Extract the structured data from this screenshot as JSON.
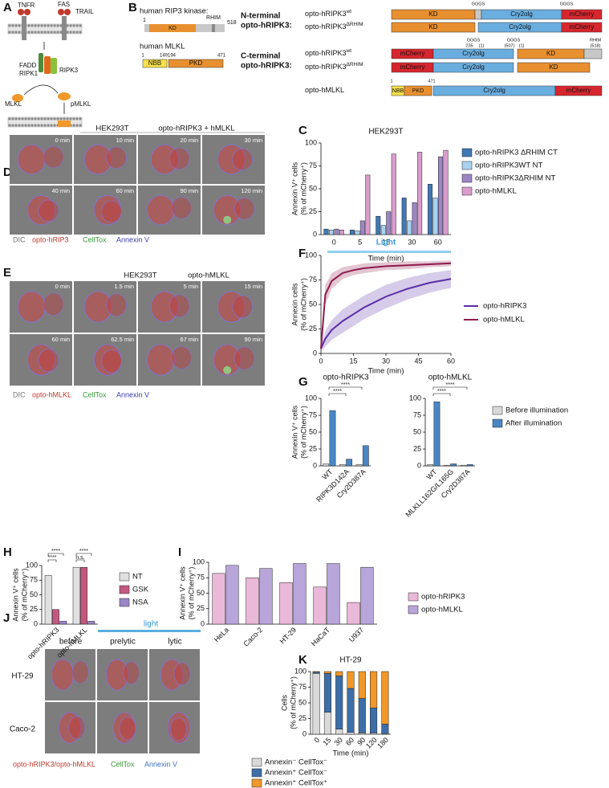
{
  "panel_labels": [
    "A",
    "B",
    "C",
    "D",
    "E",
    "F",
    "G",
    "H",
    "I",
    "J",
    "K"
  ],
  "diagram_a": {
    "receptors": [
      "TNFR",
      "FAS",
      "TRAIL"
    ],
    "proteins": [
      "FADD",
      "RIPK1",
      "RIPK3",
      "MLKL",
      "pMLKL"
    ]
  },
  "diagram_b": {
    "rip3_title": "human RIP3 kinase:",
    "rip3_labels": [
      "1",
      "KD",
      "RHIM",
      "518"
    ],
    "mlkl_title": "human MLKL",
    "mlkl_labels": [
      "1",
      "149",
      "194",
      "471",
      "NBB",
      "PKD"
    ],
    "group_n": [
      "N-terminal",
      "opto-hRIPK3:"
    ],
    "group_c": [
      "C-terminal",
      "opto-hRIPK3:"
    ],
    "constructs": [
      {
        "name": "opto-hRIPK3",
        "sup": "wt",
        "domains": [
          "KD",
          "Cry2olg",
          "mCherry"
        ],
        "notes": [
          "GGGS",
          "GGGS"
        ]
      },
      {
        "name": "opto-hRIPK3",
        "sup": "ΔRHIM",
        "domains": [
          "KD",
          "Cry2olg",
          "mCherry"
        ],
        "notes": []
      },
      {
        "name": "opto-hRIPK3",
        "sup": "wt",
        "domains": [
          "mCherry",
          "Cry2olg",
          "KD"
        ],
        "notes": [
          "GGGS",
          "235",
          "(1)",
          "GGGS",
          "(507)",
          "(1)",
          "RHIM",
          "(518)"
        ]
      },
      {
        "name": "opto-hRIPK3",
        "sup": "ΔRHIM",
        "domains": [
          "mCherry",
          "Cry2olg",
          "KD"
        ],
        "notes": []
      },
      {
        "name": "opto-hMLKL",
        "sup": "",
        "domains": [
          "NBB",
          "PKD",
          "Cry2olg",
          "mCherry"
        ],
        "notes": [
          "1",
          "471"
        ]
      }
    ]
  },
  "micro_d": {
    "title": [
      "HEK293T",
      "opto-hRIPK3 + hMLKL"
    ],
    "times": [
      "0 min",
      "10 min",
      "20 min",
      "30 min",
      "40 min",
      "60 min",
      "90 min",
      "120 min"
    ],
    "channels": [
      "DIC",
      "opto-hRIP3",
      "CellTox",
      "Annexin V"
    ]
  },
  "micro_e": {
    "title": [
      "HEK293T",
      "opto-hMLKL"
    ],
    "times": [
      "0 min",
      "1.5 min",
      "5 min",
      "15 min",
      "60 min",
      "62.5 min",
      "67 min",
      "90 min"
    ],
    "channels": [
      "DIC",
      "opto-hMLKL",
      "CellTox",
      "Annexin V"
    ]
  },
  "micro_j": {
    "light": "light",
    "columns": [
      "before",
      "prelytic",
      "lytic"
    ],
    "rows": [
      "HT-29",
      "Caco-2"
    ],
    "channels": [
      "opto-hRIPK3/opto-hMLKL",
      "CellTox",
      "Annexin V"
    ]
  },
  "chart_data": [
    {
      "type": "bar",
      "title": "HEK293T",
      "ylabel": [
        "Annexin V⁺ cells",
        "(% of mCherry⁺)"
      ],
      "xlabel": "Time (min)",
      "categories": [
        "0",
        "5",
        "15",
        "30",
        "60"
      ],
      "series": [
        {
          "name": "opto-hRIPK3 ΔRHIM CT",
          "color": "#3f78b5",
          "values": [
            6,
            5,
            20,
            40,
            55
          ]
        },
        {
          "name": "opto-hRIPK3WT NT",
          "color": "#a8d3f0",
          "values": [
            5,
            4,
            10,
            15,
            40
          ]
        },
        {
          "name": "opto-hRIPK3ΔRHIM NT",
          "color": "#9c86c4",
          "values": [
            6,
            15,
            25,
            35,
            85
          ]
        },
        {
          "name": "opto-hMLKL",
          "color": "#d99ccd",
          "values": [
            5,
            65,
            88,
            90,
            92
          ]
        }
      ],
      "ylim": [
        0,
        100
      ],
      "yticks": [
        0,
        25,
        50,
        75,
        100
      ]
    },
    {
      "type": "line",
      "ylabel": [
        "Annexin cells",
        "(% of mCherry⁺)"
      ],
      "xlabel": "Time (min)",
      "light": "Light",
      "x": [
        0,
        2,
        5,
        10,
        15,
        20,
        30,
        40,
        50,
        60
      ],
      "series": [
        {
          "name": "opto-hRIPK3",
          "color": "#5a2ea6",
          "values": [
            5,
            15,
            24,
            33,
            40,
            47,
            58,
            66,
            72,
            76
          ],
          "errors": [
            3,
            8,
            10,
            12,
            12,
            12,
            12,
            11,
            10,
            9
          ]
        },
        {
          "name": "opto-hMLKL",
          "color": "#8e1b4c",
          "values": [
            5,
            60,
            74,
            82,
            85,
            87,
            89,
            90,
            91,
            92
          ],
          "errors": [
            3,
            10,
            8,
            6,
            5,
            5,
            4,
            4,
            3,
            3
          ]
        }
      ],
      "xlim": [
        0,
        60
      ],
      "xticks": [
        0,
        15,
        30,
        45,
        60
      ],
      "ylim": [
        0,
        100
      ],
      "yticks": [
        0,
        25,
        50,
        75,
        100
      ]
    },
    {
      "type": "bar",
      "title": "opto-hRIPK3",
      "ylabel": [
        "Annexin V⁺ cells",
        "(% of mCherry⁺)"
      ],
      "categories": [
        "WT",
        "RIPK3D142A",
        "Cry2D387A"
      ],
      "series": [
        {
          "name": "Before illumination",
          "color": "#d9d9d9",
          "values": [
            3,
            2,
            2
          ]
        },
        {
          "name": "After illumination",
          "color": "#4a86c5",
          "values": [
            82,
            10,
            30
          ]
        }
      ],
      "significance": [
        "****",
        "****"
      ],
      "ylim": [
        0,
        100
      ],
      "yticks": [
        0,
        25,
        50,
        75,
        100
      ]
    },
    {
      "type": "bar",
      "title": "opto-hMLKL",
      "categories": [
        "WT",
        "MLKLL162G/L165G",
        "Cry2D387A"
      ],
      "series": [
        {
          "color": "#d9d9d9",
          "values": [
            2,
            1,
            1
          ]
        },
        {
          "color": "#4a86c5",
          "values": [
            95,
            3,
            2
          ]
        }
      ],
      "significance": [
        "****",
        "****"
      ],
      "ylim": [
        0,
        100
      ],
      "yticks": [
        0,
        25,
        50,
        75,
        100
      ]
    },
    {
      "type": "bar",
      "ylabel": [
        "Annexin V⁺ cells",
        "(% of mCherry⁺)"
      ],
      "categories": [
        "opto-hRIPK3",
        "opto-hMLKL"
      ],
      "series": [
        {
          "name": "NT",
          "color": "#e0e0e0",
          "values": [
            83,
            97
          ]
        },
        {
          "name": "GSK",
          "color": "#c4577f",
          "values": [
            25,
            97
          ]
        },
        {
          "name": "NSA",
          "color": "#9b86c8",
          "values": [
            5,
            5
          ]
        }
      ],
      "significance": [
        "****",
        "****",
        "n.s.",
        "****"
      ],
      "ylim": [
        0,
        100
      ],
      "yticks": [
        0,
        25,
        50,
        75,
        100
      ]
    },
    {
      "type": "bar",
      "ylabel": [
        "Annexin V⁺ cells",
        "(% of mCherry⁺)"
      ],
      "categories": [
        "HeLa",
        "Caco-2",
        "HT-29",
        "HaCaT",
        "U937"
      ],
      "series": [
        {
          "name": "opto-hRIPK3",
          "color": "#eab8d8",
          "values": [
            82,
            75,
            67,
            60,
            35
          ]
        },
        {
          "name": "opto-hMLKL",
          "color": "#b8a5da",
          "values": [
            95,
            90,
            98,
            98,
            92
          ]
        }
      ],
      "ylim": [
        0,
        100
      ],
      "yticks": [
        0,
        25,
        50,
        75,
        100
      ]
    },
    {
      "type": "bar",
      "stacked": true,
      "title": "HT-29",
      "ylabel": [
        "Cells",
        "(% of mCherry⁺)"
      ],
      "xlabel": "Time (min)",
      "categories": [
        "0",
        "15",
        "30",
        "60",
        "90",
        "120",
        "180"
      ],
      "series": [
        {
          "name": "Annexin⁻ CellTox⁻",
          "color": "#d9d9d9",
          "values": [
            97,
            35,
            8,
            3,
            2,
            2,
            1
          ]
        },
        {
          "name": "Annexin⁺ CellTox⁻",
          "color": "#3d6ea8",
          "values": [
            2,
            62,
            85,
            70,
            55,
            40,
            15
          ]
        },
        {
          "name": "Annexin⁺ CellTox⁺",
          "color": "#f0982a",
          "values": [
            1,
            3,
            7,
            27,
            43,
            58,
            84
          ]
        }
      ],
      "ylim": [
        0,
        100
      ],
      "yticks": [
        0,
        25,
        50,
        75,
        100
      ]
    }
  ]
}
